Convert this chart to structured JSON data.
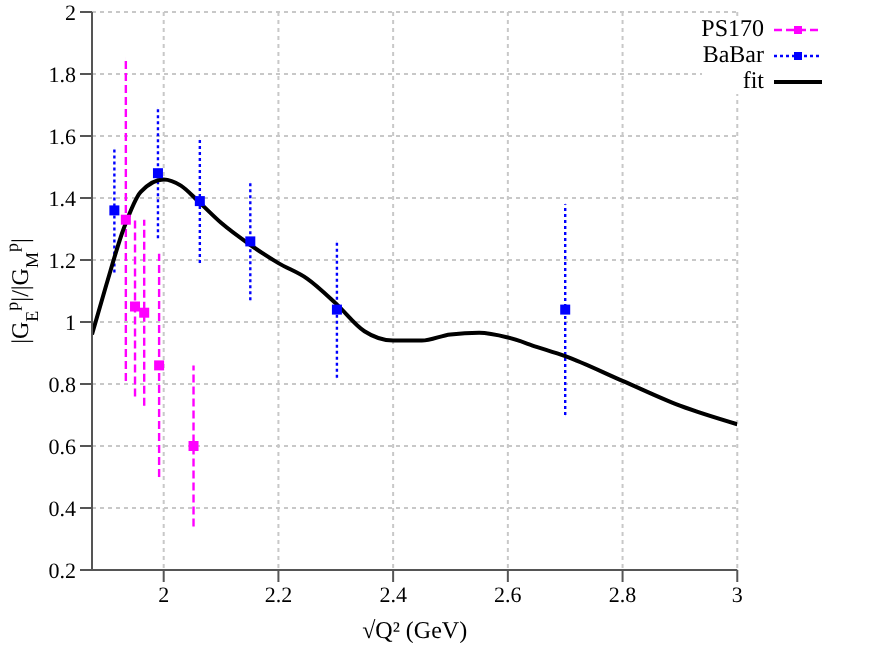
{
  "chart_data": {
    "type": "scatter",
    "xlabel": "√Q² (GeV)",
    "ylabel": "|G$_{E}$$^{p}$|/|G$_{M}$$^{p}$|",
    "xlim": [
      1.875,
      3
    ],
    "xticks": [
      2,
      2.2,
      2.4,
      2.6,
      2.8,
      3
    ],
    "ylim": [
      0.2,
      2
    ],
    "yticks": [
      0.2,
      0.4,
      0.6,
      0.8,
      1,
      1.2,
      1.4,
      1.6,
      1.8,
      2
    ],
    "grid": true,
    "legend": "top right",
    "marker": "square",
    "series": [
      {
        "name": "PS170",
        "color": "#ff00ff",
        "line_style": "dashed",
        "x": [
          1.934,
          1.95,
          1.966,
          1.992,
          2.052
        ],
        "values": [
          1.33,
          1.05,
          1.03,
          0.86,
          0.6
        ],
        "errors": [
          0.52,
          0.29,
          0.3,
          0.36,
          0.26
        ]
      },
      {
        "name": "BaBar",
        "color": "#0000ff",
        "line_style": "dotted",
        "x": [
          1.914,
          1.99,
          2.063,
          2.151,
          2.302,
          2.7
        ],
        "values": [
          1.36,
          1.48,
          1.39,
          1.26,
          1.04,
          1.04
        ],
        "errors": [
          0.2,
          0.21,
          0.2,
          0.19,
          0.22,
          0.34
        ]
      },
      {
        "name": "fit",
        "type": "line",
        "color": "#000000",
        "line_style": "solid",
        "marker": "none",
        "x": [
          1.875,
          1.9,
          1.93,
          1.96,
          2.0,
          2.03,
          2.06,
          2.1,
          2.15,
          2.2,
          2.25,
          2.3,
          2.35,
          2.4,
          2.45,
          2.5,
          2.55,
          2.6,
          2.65,
          2.7,
          2.8,
          2.9,
          3.0
        ],
        "values": [
          0.96,
          1.12,
          1.3,
          1.42,
          1.46,
          1.44,
          1.39,
          1.32,
          1.25,
          1.19,
          1.14,
          1.06,
          0.97,
          0.94,
          0.94,
          0.96,
          0.965,
          0.95,
          0.92,
          0.89,
          0.81,
          0.73,
          0.67
        ]
      }
    ]
  }
}
